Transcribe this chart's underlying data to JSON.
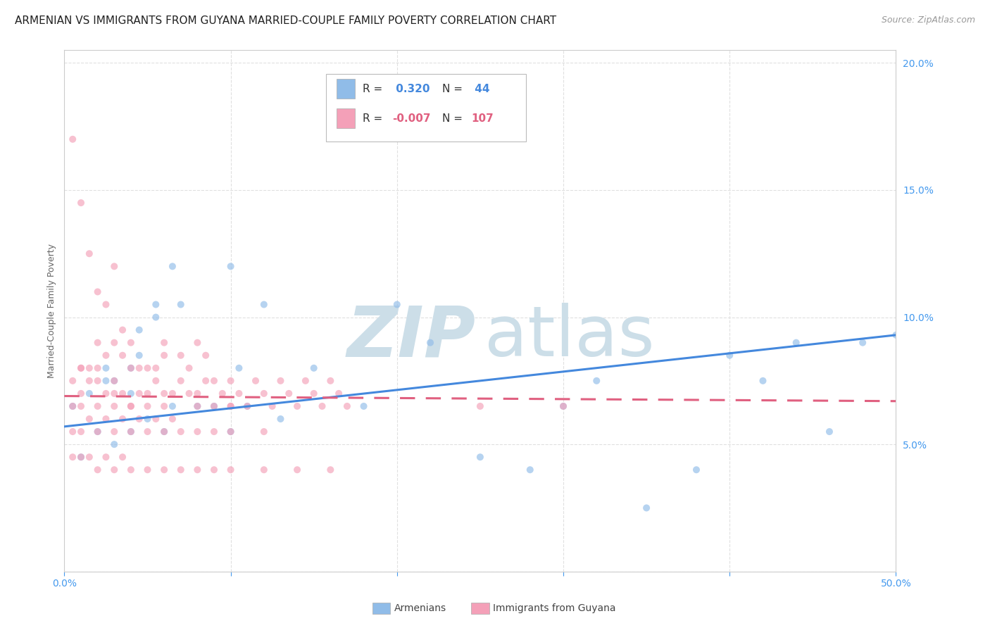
{
  "title": "ARMENIAN VS IMMIGRANTS FROM GUYANA MARRIED-COUPLE FAMILY POVERTY CORRELATION CHART",
  "source": "Source: ZipAtlas.com",
  "ylabel": "Married-Couple Family Poverty",
  "yticks": [
    0.0,
    0.05,
    0.1,
    0.15,
    0.2
  ],
  "ytick_labels": [
    "",
    "5.0%",
    "10.0%",
    "15.0%",
    "20.0%"
  ],
  "xticks": [
    0.0,
    0.1,
    0.2,
    0.3,
    0.4,
    0.5
  ],
  "xlim": [
    0.0,
    0.5
  ],
  "ylim": [
    0.0,
    0.205
  ],
  "blue_color": "#90bce8",
  "pink_color": "#f4a0b8",
  "trend_blue_color": "#4488dd",
  "trend_pink_color": "#e06080",
  "watermark_color": "#ccdee8",
  "blue_scatter_x": [
    0.005,
    0.01,
    0.015,
    0.02,
    0.025,
    0.025,
    0.03,
    0.03,
    0.04,
    0.04,
    0.04,
    0.045,
    0.045,
    0.05,
    0.055,
    0.055,
    0.06,
    0.065,
    0.065,
    0.07,
    0.08,
    0.09,
    0.1,
    0.1,
    0.105,
    0.11,
    0.12,
    0.13,
    0.15,
    0.18,
    0.2,
    0.22,
    0.25,
    0.28,
    0.3,
    0.32,
    0.35,
    0.38,
    0.4,
    0.42,
    0.44,
    0.46,
    0.48,
    0.5
  ],
  "blue_scatter_y": [
    0.065,
    0.045,
    0.07,
    0.055,
    0.075,
    0.08,
    0.05,
    0.075,
    0.055,
    0.07,
    0.08,
    0.095,
    0.085,
    0.06,
    0.105,
    0.1,
    0.055,
    0.12,
    0.065,
    0.105,
    0.065,
    0.065,
    0.055,
    0.12,
    0.08,
    0.065,
    0.105,
    0.06,
    0.08,
    0.065,
    0.105,
    0.09,
    0.045,
    0.04,
    0.065,
    0.075,
    0.025,
    0.04,
    0.085,
    0.075,
    0.09,
    0.055,
    0.09,
    0.093
  ],
  "pink_scatter_x": [
    0.005,
    0.005,
    0.01,
    0.01,
    0.01,
    0.01,
    0.015,
    0.015,
    0.015,
    0.02,
    0.02,
    0.02,
    0.02,
    0.025,
    0.025,
    0.025,
    0.03,
    0.03,
    0.03,
    0.03,
    0.035,
    0.035,
    0.035,
    0.04,
    0.04,
    0.04,
    0.045,
    0.045,
    0.05,
    0.05,
    0.055,
    0.055,
    0.06,
    0.06,
    0.06,
    0.065,
    0.07,
    0.07,
    0.075,
    0.075,
    0.08,
    0.08,
    0.085,
    0.085,
    0.09,
    0.09,
    0.095,
    0.1,
    0.1,
    0.105,
    0.11,
    0.115,
    0.12,
    0.125,
    0.13,
    0.135,
    0.14,
    0.145,
    0.15,
    0.155,
    0.16,
    0.165,
    0.17,
    0.005,
    0.01,
    0.015,
    0.02,
    0.025,
    0.03,
    0.035,
    0.04,
    0.045,
    0.05,
    0.055,
    0.06,
    0.065,
    0.07,
    0.08,
    0.09,
    0.1,
    0.12,
    0.005,
    0.01,
    0.015,
    0.02,
    0.025,
    0.03,
    0.035,
    0.04,
    0.05,
    0.06,
    0.07,
    0.08,
    0.09,
    0.1,
    0.12,
    0.14,
    0.16,
    0.005,
    0.01,
    0.02,
    0.03,
    0.04,
    0.05,
    0.06,
    0.08,
    0.1,
    0.25,
    0.3
  ],
  "pink_scatter_y": [
    0.065,
    0.17,
    0.065,
    0.07,
    0.08,
    0.145,
    0.075,
    0.08,
    0.125,
    0.065,
    0.08,
    0.09,
    0.11,
    0.07,
    0.085,
    0.105,
    0.065,
    0.075,
    0.09,
    0.12,
    0.07,
    0.085,
    0.095,
    0.065,
    0.08,
    0.09,
    0.07,
    0.08,
    0.07,
    0.08,
    0.075,
    0.08,
    0.07,
    0.085,
    0.09,
    0.07,
    0.075,
    0.085,
    0.07,
    0.08,
    0.065,
    0.09,
    0.075,
    0.085,
    0.065,
    0.075,
    0.07,
    0.065,
    0.075,
    0.07,
    0.065,
    0.075,
    0.07,
    0.065,
    0.075,
    0.07,
    0.065,
    0.075,
    0.07,
    0.065,
    0.075,
    0.07,
    0.065,
    0.055,
    0.055,
    0.06,
    0.055,
    0.06,
    0.055,
    0.06,
    0.055,
    0.06,
    0.055,
    0.06,
    0.055,
    0.06,
    0.055,
    0.055,
    0.055,
    0.055,
    0.055,
    0.045,
    0.045,
    0.045,
    0.04,
    0.045,
    0.04,
    0.045,
    0.04,
    0.04,
    0.04,
    0.04,
    0.04,
    0.04,
    0.04,
    0.04,
    0.04,
    0.04,
    0.075,
    0.08,
    0.075,
    0.07,
    0.065,
    0.065,
    0.065,
    0.07,
    0.065,
    0.065,
    0.065
  ],
  "blue_trend_x": [
    0.0,
    0.5
  ],
  "blue_trend_y": [
    0.057,
    0.093
  ],
  "pink_trend_x": [
    0.0,
    0.5
  ],
  "pink_trend_y": [
    0.069,
    0.067
  ],
  "title_fontsize": 11,
  "source_fontsize": 9,
  "axis_label_fontsize": 9,
  "tick_fontsize": 10,
  "legend_fontsize": 11,
  "scatter_size": 52,
  "scatter_alpha": 0.65,
  "trend_linewidth": 2.2,
  "background_color": "#ffffff",
  "grid_color": "#e0e0e0",
  "tick_color": "#4499ee",
  "legend_r_blue_color": "#4488dd",
  "legend_n_blue_color": "#4488dd",
  "legend_r_pink_color": "#e06080",
  "legend_n_pink_color": "#e06080"
}
